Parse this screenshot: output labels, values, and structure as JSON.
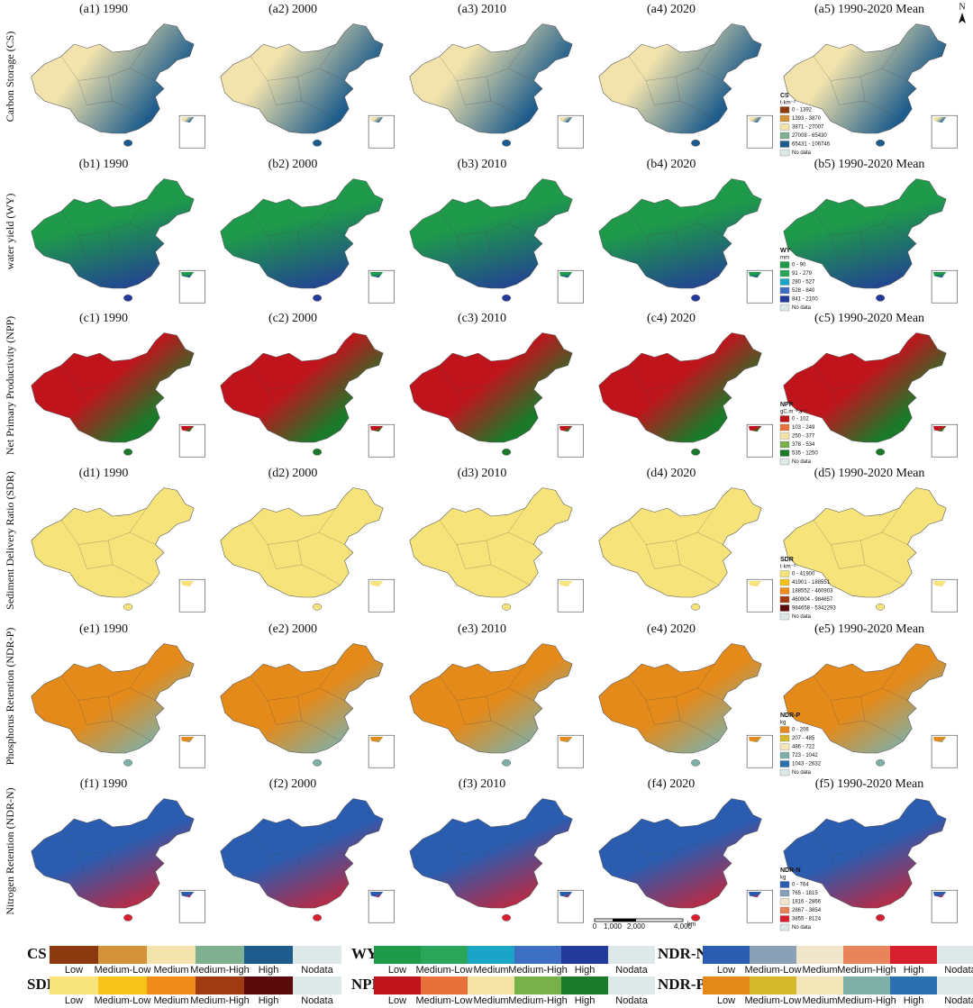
{
  "north": "N",
  "rows": [
    {
      "label": "Carbon Storage (CS)",
      "panels": [
        "(a1) 1990",
        "(a2) 2000",
        "(a3) 2010",
        "(a4) 2020",
        "(a5) 1990-2020 Mean"
      ],
      "legend": {
        "title": "CS",
        "unit": "t·km⁻²",
        "items": [
          "0 - 1392",
          "1393 - 3870",
          "3871 - 27007",
          "27008 - 65430",
          "65431 - 106746",
          "No data"
        ]
      },
      "colors": [
        "#8b3a0f",
        "#d4923a",
        "#f2e3ad",
        "#7fb08f",
        "#1d5c8c",
        "#dde8e8"
      ]
    },
    {
      "label": "water yield (WY)",
      "panels": [
        "(b1) 1990",
        "(b2) 2000",
        "(b3) 2010",
        "(b4) 2020",
        "(b5) 1990-2020 Mean"
      ],
      "legend": {
        "title": "WY",
        "unit": "mm",
        "items": [
          "0 - 90",
          "91 - 279",
          "280 - 527",
          "528 - 840",
          "841 - 2100",
          "No data"
        ]
      },
      "colors": [
        "#1e9a4a",
        "#2aa55a",
        "#1aa4c8",
        "#3f6fc2",
        "#233a9a",
        "#dde8e8"
      ]
    },
    {
      "label": "Net Primary Productivity (NPP)",
      "panels": [
        "(c1) 1990",
        "(c2) 2000",
        "(c3) 2010",
        "(c4) 2020",
        "(c5) 1990-2020 Mean"
      ],
      "legend": {
        "title": "NPP",
        "unit": "gC.m⁻².a⁻¹",
        "items": [
          "0 - 102",
          "103 - 249",
          "250 - 377",
          "378 - 534",
          "535 - 1250",
          "No data"
        ]
      },
      "colors": [
        "#c0141c",
        "#e8703a",
        "#f3e4a6",
        "#78b04a",
        "#1a7a2a",
        "#dde8e8"
      ]
    },
    {
      "label": "Sediment Delivery Ratio (SDR)",
      "panels": [
        "(d1) 1990",
        "(d2) 2000",
        "(d3) 2010",
        "(d4) 2020",
        "(d5) 1990-2020 Mean"
      ],
      "legend": {
        "title": "SDR",
        "unit": "t·km⁻²",
        "items": [
          "0 - 41900",
          "41901 - 188551",
          "188552 - 460903",
          "460904 - 984657",
          "984658 - 5342293",
          "No data"
        ]
      },
      "colors": [
        "#f6e47a",
        "#f7c21a",
        "#f08c1a",
        "#a03a10",
        "#5a0a0a",
        "#dde8e8"
      ]
    },
    {
      "label": "Phosphorus Retention (NDR-P)",
      "panels": [
        "(e1) 1990",
        "(e2) 2000",
        "(e3) 2010",
        "(e4) 2020",
        "(e5) 1990-2020 Mean"
      ],
      "legend": {
        "title": "NDR-P",
        "unit": "kg",
        "items": [
          "0 - 206",
          "207 - 485",
          "486 - 722",
          "723 - 1042",
          "1043 - 2632",
          "No data"
        ]
      },
      "colors": [
        "#e48a1a",
        "#d4b82a",
        "#f3e6b8",
        "#7fb0a8",
        "#2a70b0",
        "#dde8e8"
      ]
    },
    {
      "label": "Nitrogen Retention (NDR-N)",
      "panels": [
        "(f1) 1990",
        "(f2) 2000",
        "(f3) 2010",
        "(f4) 2020",
        "(f5) 1990-2020 Mean"
      ],
      "legend": {
        "title": "NDR-N",
        "unit": "kg",
        "items": [
          "0 - 764",
          "765 - 1815",
          "1816 - 2866",
          "2867 - 3854",
          "3855 - 8124",
          "No data"
        ]
      },
      "colors": [
        "#2a5cb0",
        "#8aa0b8",
        "#efe6cc",
        "#e8835a",
        "#d6202f",
        "#dde8e8"
      ]
    }
  ],
  "scale_bar": {
    "labels": [
      "0",
      "1,000",
      "2,000",
      "4,000"
    ],
    "unit": "km"
  },
  "classes": [
    "Low",
    "Medium-Low",
    "Medium",
    "Medium-High",
    "High",
    "Nodata"
  ],
  "legend_bars": [
    {
      "label": "CS",
      "colors": [
        "#8b3a0f",
        "#d4923a",
        "#f2e3ad",
        "#7fb08f",
        "#1d5c8c",
        "#dde8e8"
      ]
    },
    {
      "label": "WY",
      "colors": [
        "#1e9a4a",
        "#2aa55a",
        "#1aa4c8",
        "#3f6fc2",
        "#233a9a",
        "#dde8e8"
      ]
    },
    {
      "label": "NDR-N",
      "colors": [
        "#2a5cb0",
        "#8aa0b8",
        "#efe6cc",
        "#e8835a",
        "#d6202f",
        "#dde8e8"
      ]
    },
    {
      "label": "SDR",
      "colors": [
        "#f6e47a",
        "#f7c21a",
        "#f08c1a",
        "#a03a10",
        "#5a0a0a",
        "#dde8e8"
      ]
    },
    {
      "label": "NPP",
      "colors": [
        "#c0141c",
        "#e8703a",
        "#f3e4a6",
        "#78b04a",
        "#1a7a2a",
        "#dde8e8"
      ]
    },
    {
      "label": "NDR-P",
      "colors": [
        "#e48a1a",
        "#d4b82a",
        "#f3e6b8",
        "#7fb0a8",
        "#2a70b0",
        "#dde8e8"
      ]
    }
  ]
}
